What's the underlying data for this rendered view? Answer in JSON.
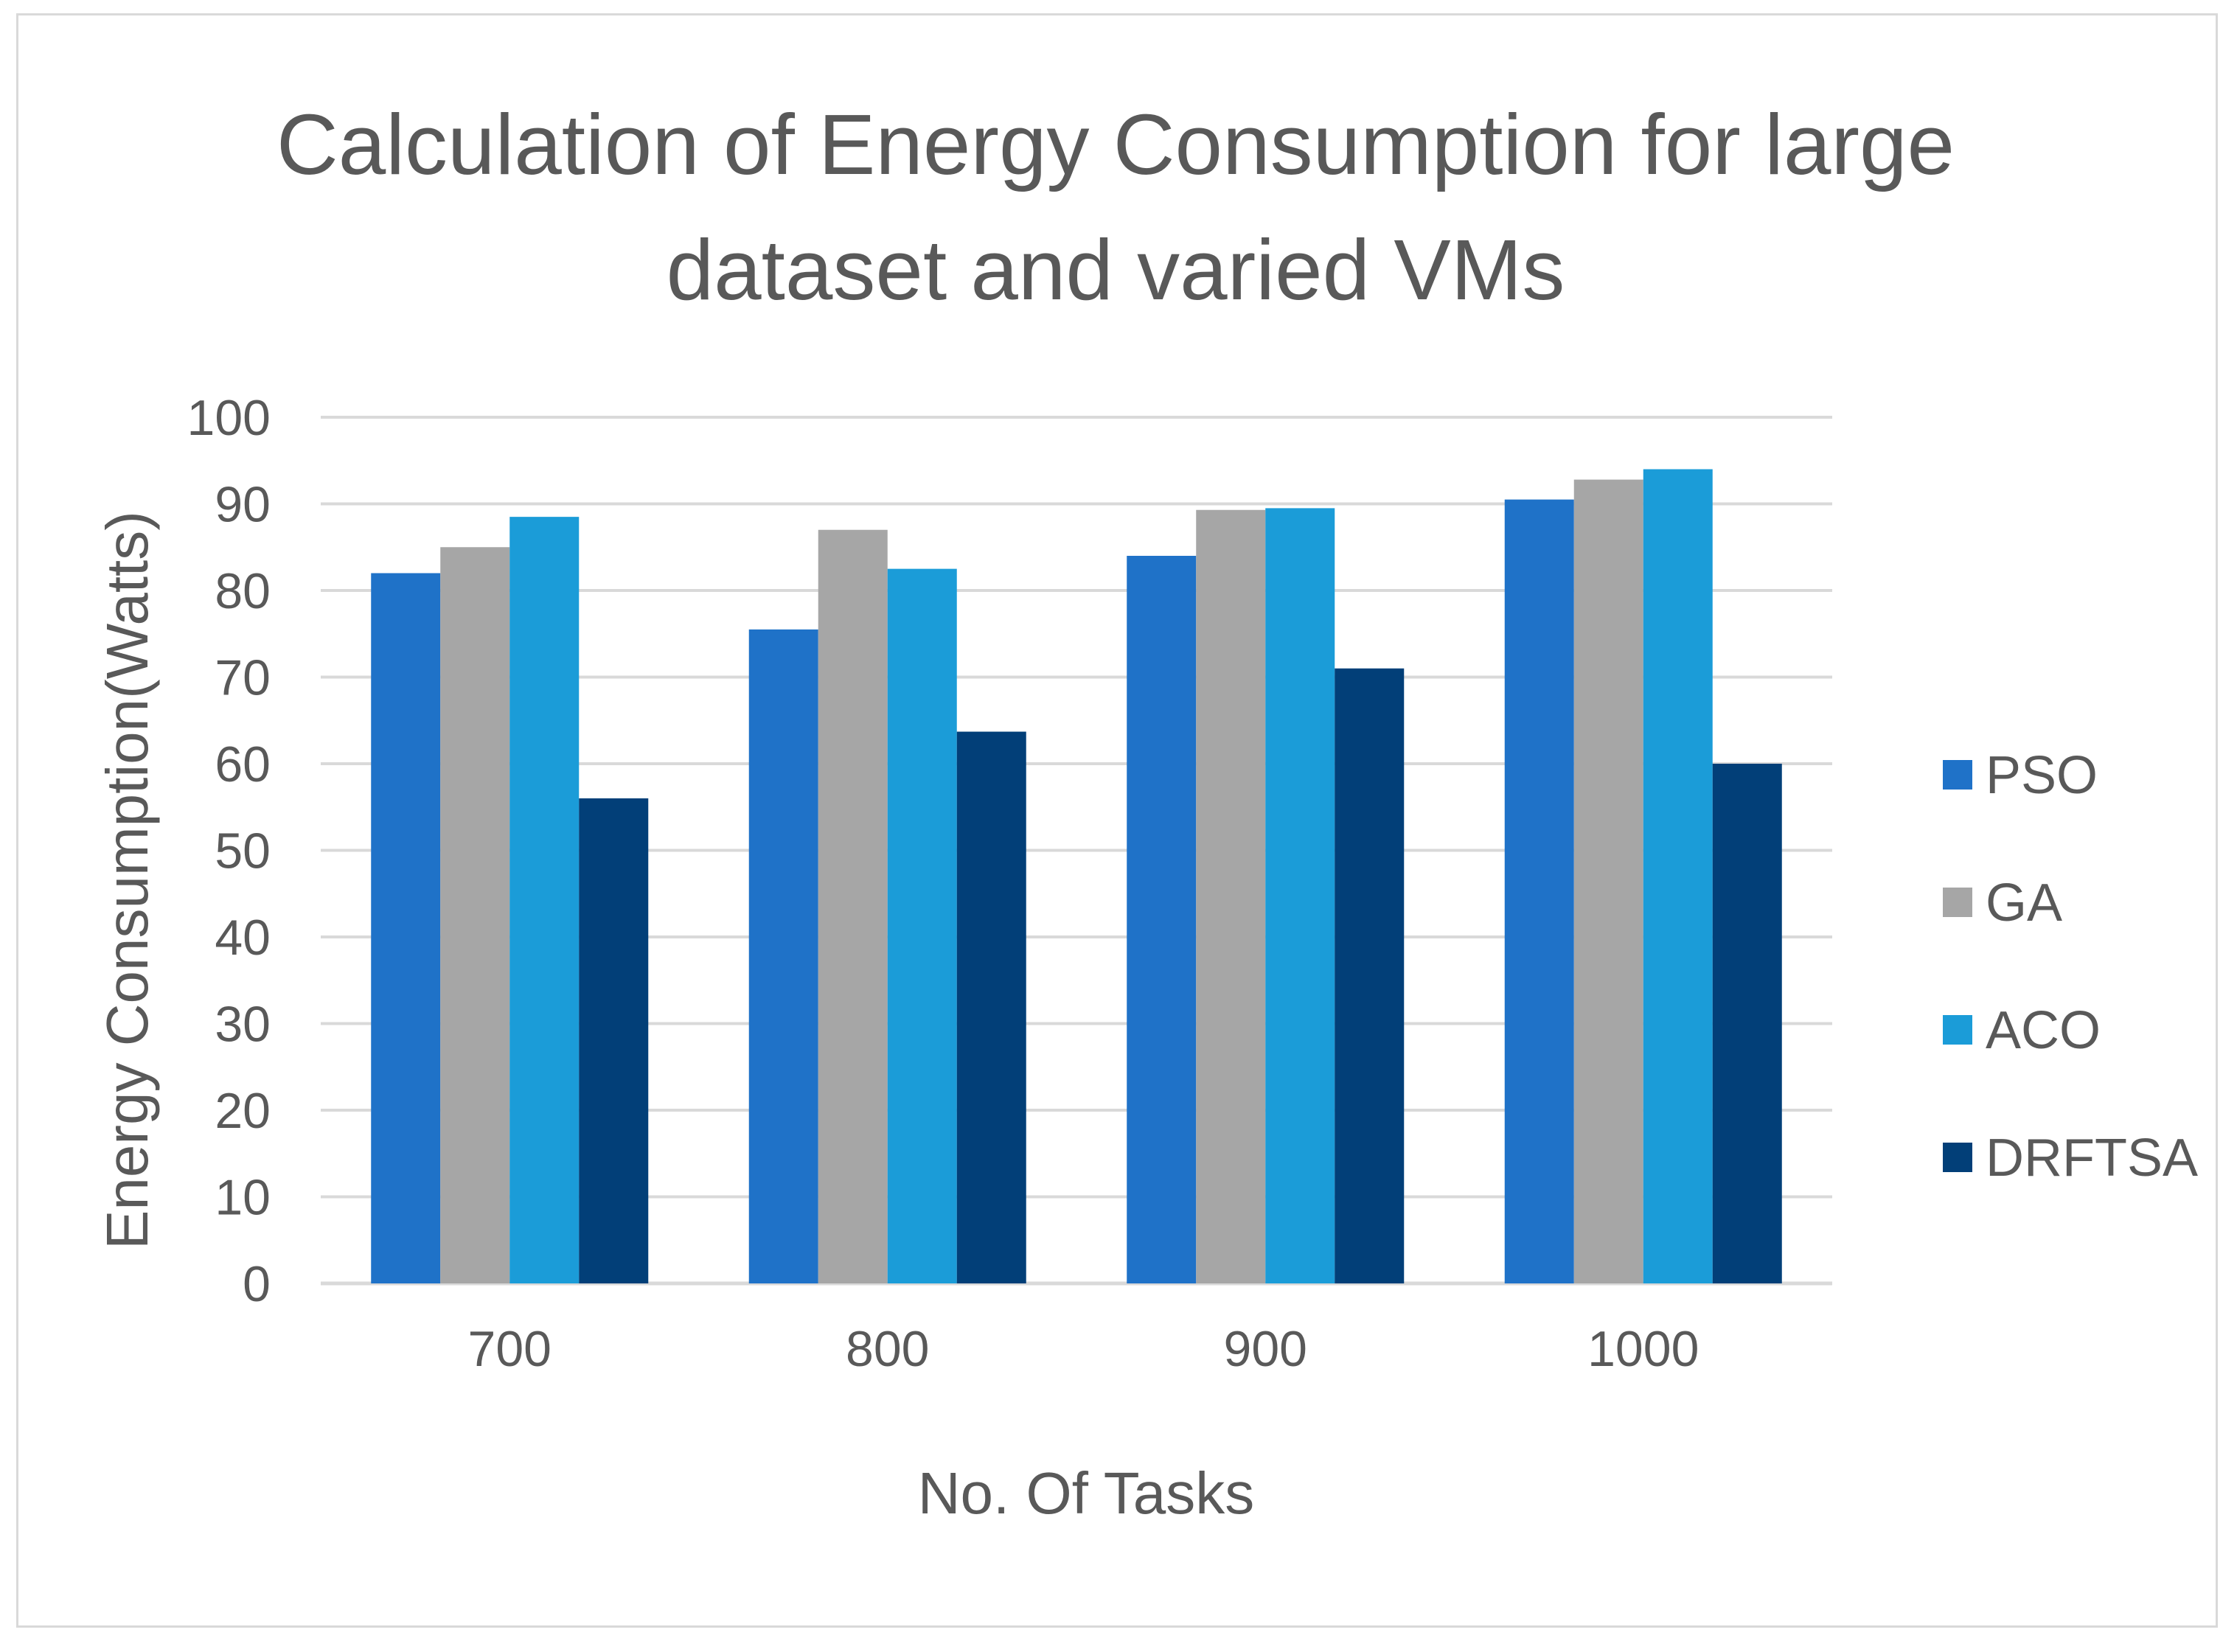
{
  "chart_data": {
    "type": "bar",
    "title_lines": [
      "Calculation of Energy Consumption for large",
      "dataset and varied VMs"
    ],
    "xlabel": "No. Of Tasks",
    "ylabel": "Energy Consumption(Watts)",
    "categories": [
      "700",
      "800",
      "900",
      "1000"
    ],
    "ylim": [
      0,
      100
    ],
    "yticks": [
      0,
      10,
      20,
      30,
      40,
      50,
      60,
      70,
      80,
      90,
      100
    ],
    "grid": true,
    "legend_position": "right",
    "series": [
      {
        "name": "PSO",
        "color": "#1F72C8",
        "values": [
          82,
          75.5,
          84,
          90.5
        ]
      },
      {
        "name": "GA",
        "color": "#A6A6A6",
        "values": [
          85,
          87,
          89.3,
          92.8
        ]
      },
      {
        "name": "ACO",
        "color": "#1B9CD8",
        "values": [
          88.5,
          82.5,
          89.5,
          94
        ]
      },
      {
        "name": "DRFTSA",
        "color": "#023F78",
        "values": [
          56,
          63.7,
          71,
          60
        ]
      }
    ]
  }
}
